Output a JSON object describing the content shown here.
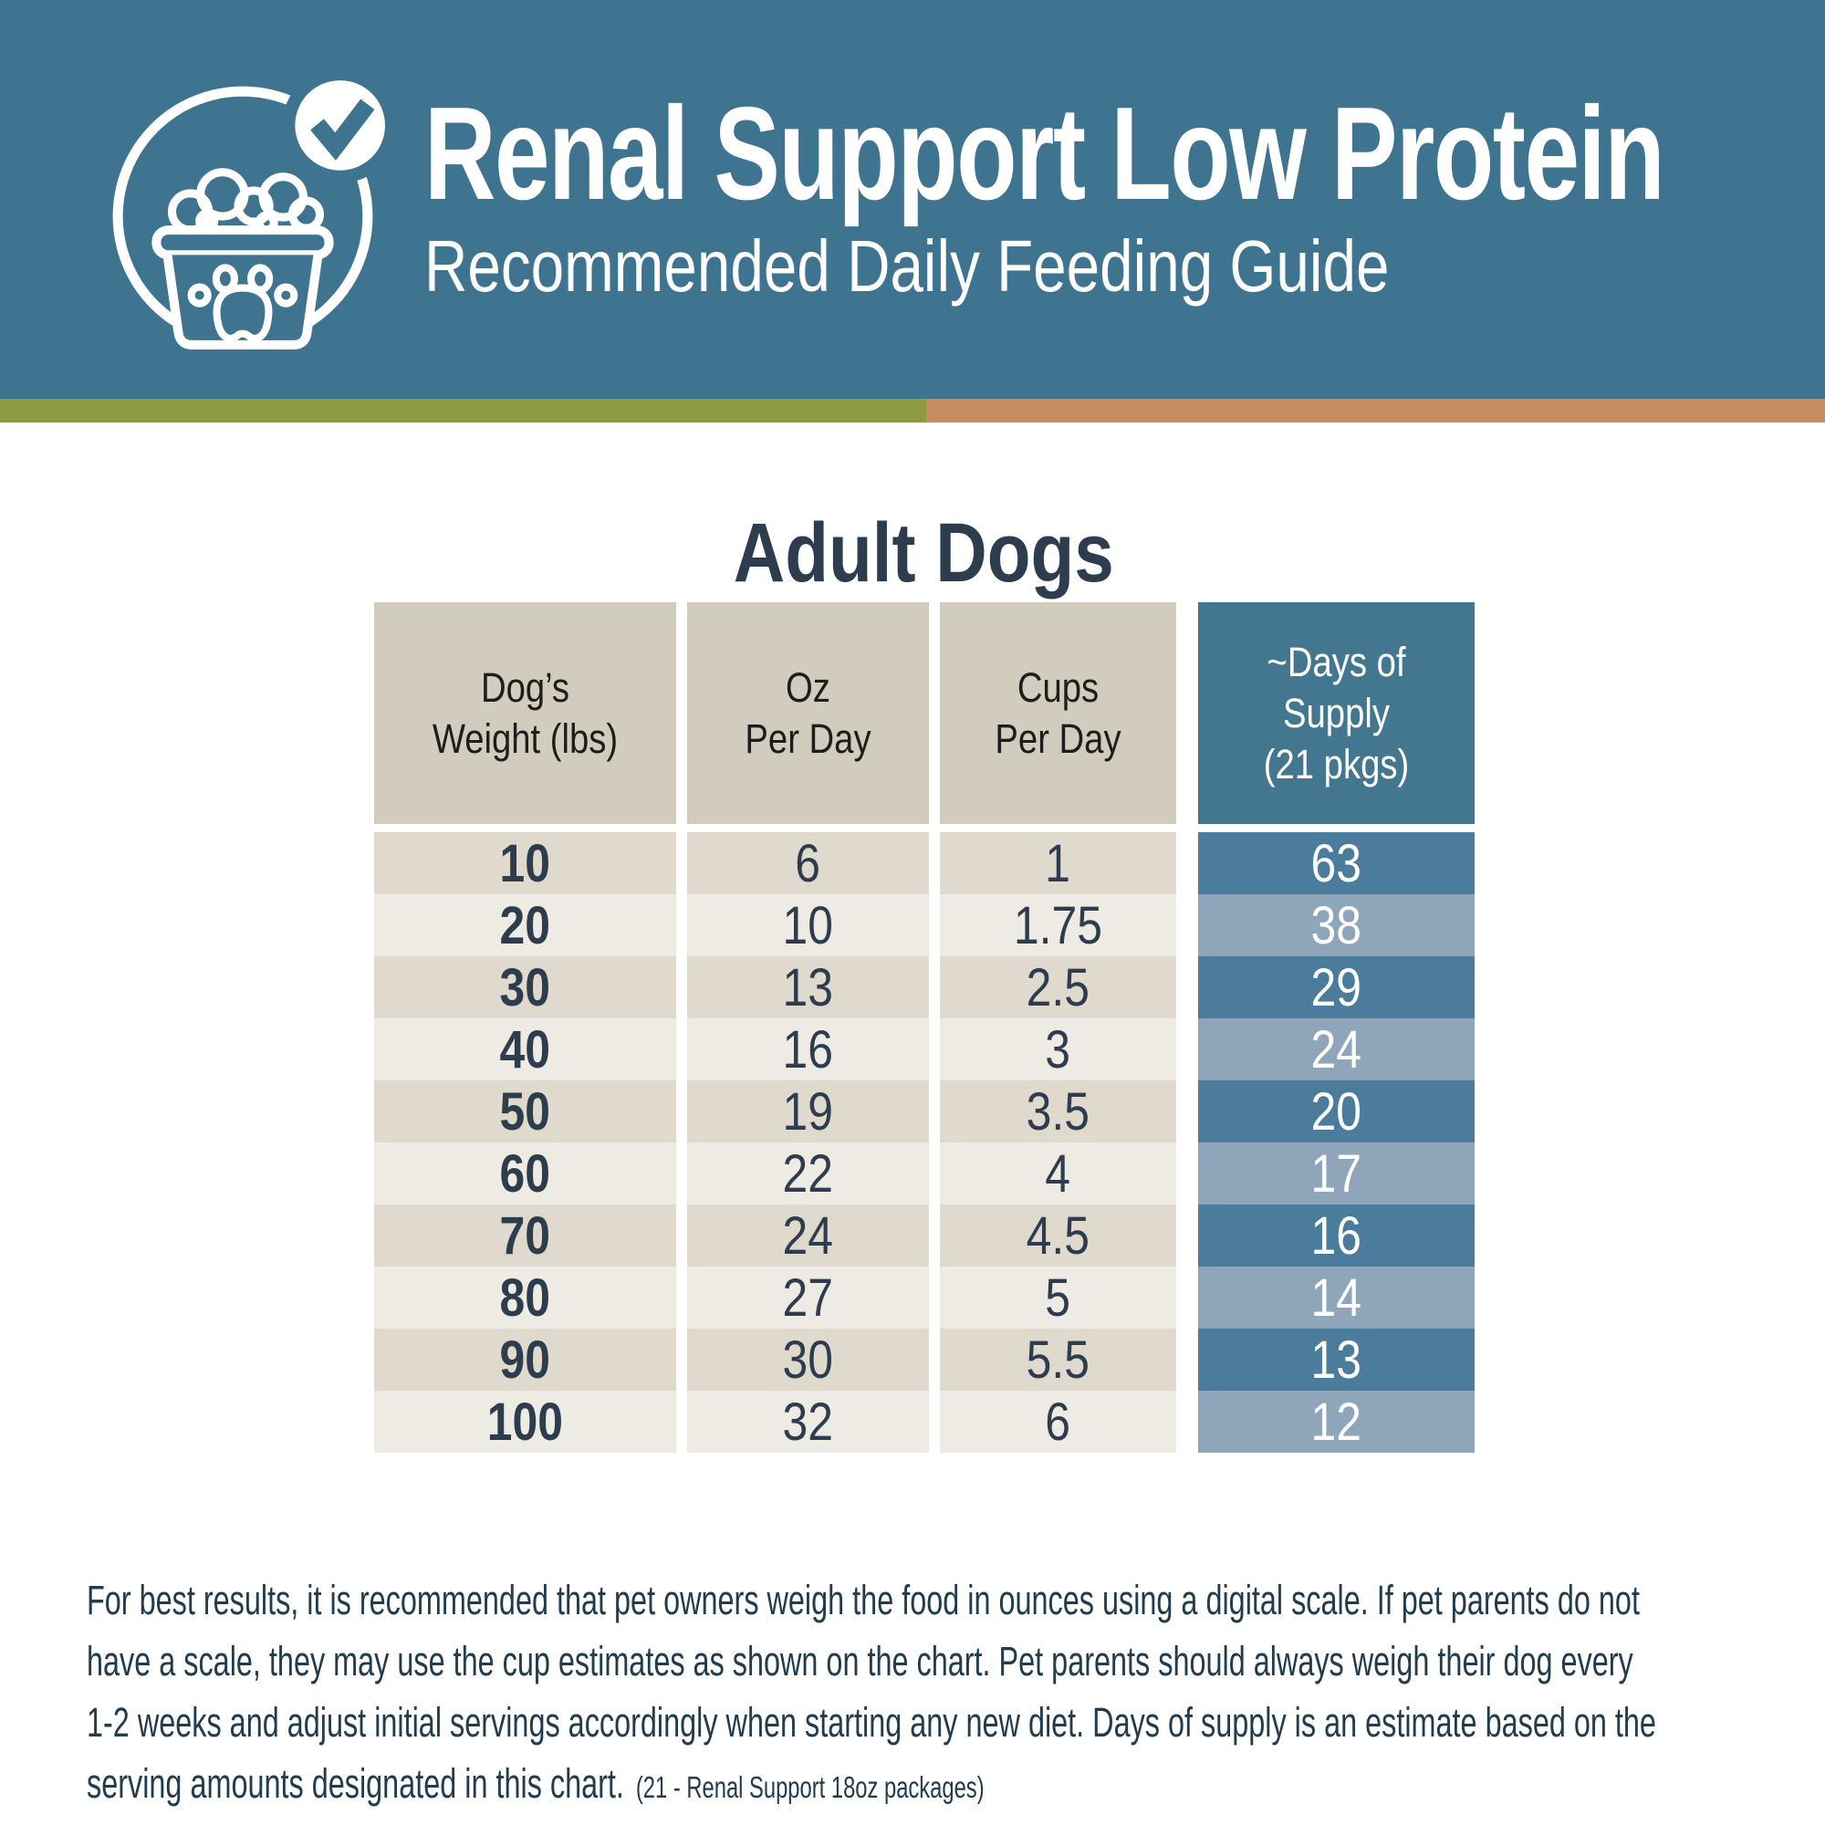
{
  "header": {
    "title": "Renal Support Low Protein",
    "subtitle": "Recommended Daily Feeding Guide",
    "icon": "dog-food-bowl-with-checkmark-icon"
  },
  "colors": {
    "banner_blue": "#3f7490",
    "stripe_green": "#8d9a41",
    "stripe_orange": "#c78b62",
    "header_cell_beige": "#d2ccbe",
    "row_beige_dark": "#dfdacd",
    "row_beige_light": "#edebe4",
    "days_header_blue": "#43768f",
    "days_cell_dark": "#4c7c9b",
    "days_cell_light": "#8fa5ba",
    "text_navy": "#2e3d4d",
    "footer_navy": "#213c4e"
  },
  "section": {
    "title": "Adult Dogs"
  },
  "table": {
    "columns": [
      {
        "id": "weight",
        "lines": [
          "Dog’s",
          "Weight (lbs)"
        ]
      },
      {
        "id": "oz",
        "lines": [
          "Oz",
          "Per Day"
        ]
      },
      {
        "id": "cups",
        "lines": [
          "Cups",
          "Per Day"
        ]
      },
      {
        "id": "days",
        "lines": [
          "~Days of",
          "Supply",
          "(21 pkgs)"
        ]
      }
    ],
    "rows": [
      {
        "weight": "10",
        "oz": "6",
        "cups": "1",
        "days": "63"
      },
      {
        "weight": "20",
        "oz": "10",
        "cups": "1.75",
        "days": "38"
      },
      {
        "weight": "30",
        "oz": "13",
        "cups": "2.5",
        "days": "29"
      },
      {
        "weight": "40",
        "oz": "16",
        "cups": "3",
        "days": "24"
      },
      {
        "weight": "50",
        "oz": "19",
        "cups": "3.5",
        "days": "20"
      },
      {
        "weight": "60",
        "oz": "22",
        "cups": "4",
        "days": "17"
      },
      {
        "weight": "70",
        "oz": "24",
        "cups": "4.5",
        "days": "16"
      },
      {
        "weight": "80",
        "oz": "27",
        "cups": "5",
        "days": "14"
      },
      {
        "weight": "90",
        "oz": "30",
        "cups": "5.5",
        "days": "13"
      },
      {
        "weight": "100",
        "oz": "32",
        "cups": "6",
        "days": "12"
      }
    ]
  },
  "footer": {
    "lines": [
      "For best results, it is recommended that pet owners weigh the food in ounces using a digital scale. If pet parents do not",
      "have a scale, they may use the cup estimates as shown on the chart. Pet parents should always weigh their dog every",
      "1-2 weeks and adjust initial servings accordingly when starting any new diet. Days of supply is an estimate based on the"
    ],
    "last_line": "serving amounts designated in this chart.",
    "note": "(21 - Renal Support 18oz packages)"
  }
}
